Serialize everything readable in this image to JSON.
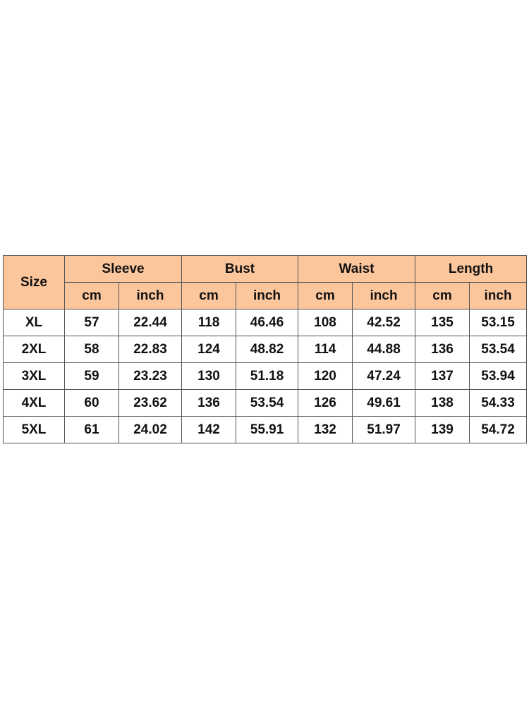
{
  "header": {
    "size_label": "Size",
    "groups": [
      {
        "label": "Sleeve",
        "units": [
          "cm",
          "inch"
        ]
      },
      {
        "label": "Bust",
        "units": [
          "cm",
          "inch"
        ]
      },
      {
        "label": "Waist",
        "units": [
          "cm",
          "inch"
        ]
      },
      {
        "label": "Length",
        "units": [
          "cm",
          "inch"
        ]
      }
    ]
  },
  "rows": [
    {
      "size": "XL",
      "values": [
        "57",
        "22.44",
        "118",
        "46.46",
        "108",
        "42.52",
        "135",
        "53.15"
      ]
    },
    {
      "size": "2XL",
      "values": [
        "58",
        "22.83",
        "124",
        "48.82",
        "114",
        "44.88",
        "136",
        "53.54"
      ]
    },
    {
      "size": "3XL",
      "values": [
        "59",
        "23.23",
        "130",
        "51.18",
        "120",
        "47.24",
        "137",
        "53.94"
      ]
    },
    {
      "size": "4XL",
      "values": [
        "60",
        "23.62",
        "136",
        "53.54",
        "126",
        "49.61",
        "138",
        "54.33"
      ]
    },
    {
      "size": "5XL",
      "values": [
        "61",
        "24.02",
        "142",
        "55.91",
        "132",
        "51.97",
        "139",
        "54.72"
      ]
    }
  ],
  "colors": {
    "header_background": "#fcc69c",
    "border": "#555555",
    "text": "#111111"
  }
}
